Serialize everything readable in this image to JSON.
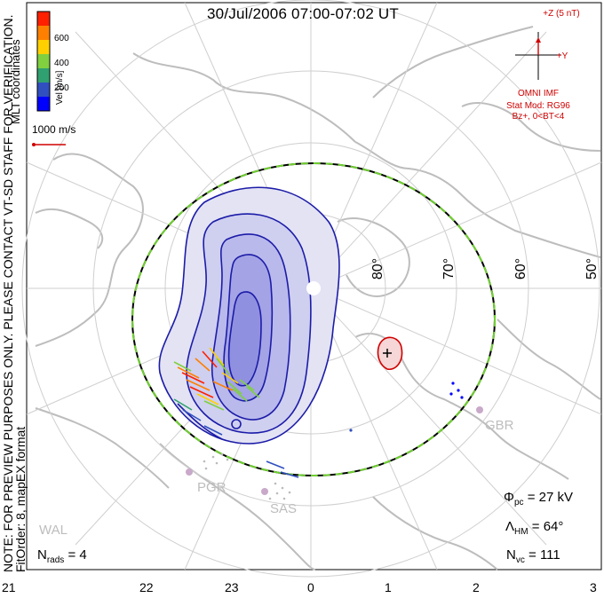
{
  "title": "30/Jul/2006 07:00-07:02 UT",
  "notes": {
    "preview": "NOTE: FOR PREVIEW PURPOSES ONLY. PLEASE CONTACT VT-SD STAFF FOR VERIFICATION.",
    "fit": "FitOrder: 8, mapEX format"
  },
  "coords_label": "MLT coordinates",
  "velocity_scale": {
    "label": "Vel [m/s]",
    "ticks": [
      "600",
      "400",
      "200"
    ],
    "colors": [
      "#ff2000",
      "#ff8000",
      "#ffd000",
      "#80d040",
      "#30a070",
      "#3050c0",
      "#0000ff"
    ]
  },
  "reference_vector": "1000 m/s",
  "imf": {
    "bz_label": "+Z (5 nT)",
    "by_label": "+Y",
    "source": "OMNI IMF",
    "model_line1": "Stat Mod: RG96",
    "model_line2": "Bz+, 0<BT<4"
  },
  "latitude_labels": [
    "80°",
    "70°",
    "60°",
    "50°"
  ],
  "mlt_labels": [
    "21",
    "22",
    "23",
    "0",
    "1",
    "2",
    "3"
  ],
  "stations": [
    "PGR",
    "SAS",
    "GBR",
    "WAL"
  ],
  "stats": {
    "phi_symbol": "Φ",
    "phi_sub": "pc",
    "phi_value": "= 27 kV",
    "lambda_symbol": "Λ",
    "lambda_sub": "HM",
    "lambda_value": "= 64°",
    "nvc_symbol": "N",
    "nvc_sub": "vc",
    "nvc_value": "= 111",
    "nrads_symbol": "N",
    "nrads_sub": "rads",
    "nrads_value": "= 4"
  },
  "colors": {
    "contour": "#1c1ca8",
    "fill": "#8080e0",
    "heppner_inner": "#000000",
    "heppner_outer": "#70d030",
    "grid": "#cfcfcf",
    "coast": "#bdbdbd"
  }
}
